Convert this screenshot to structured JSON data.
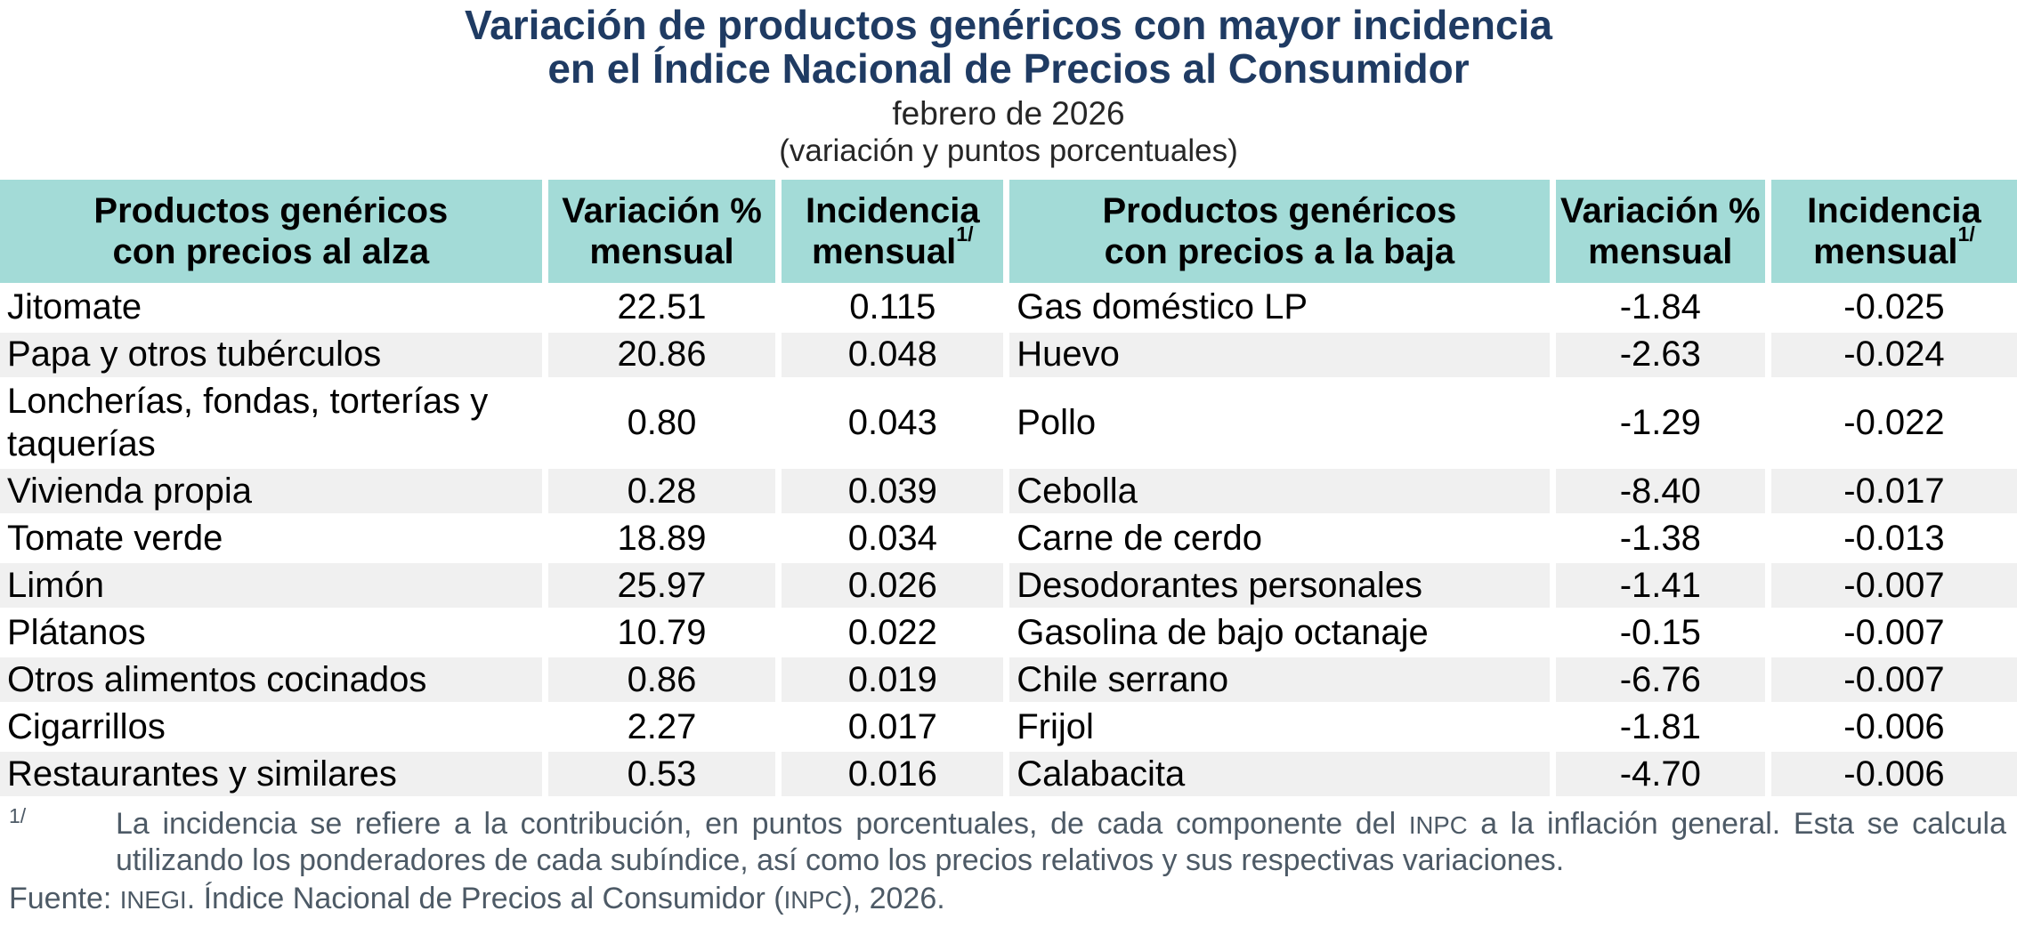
{
  "title": {
    "line1": "Variación de productos genéricos con mayor incidencia",
    "line2": "en el Índice Nacional de Precios al Consumidor",
    "date": "febrero de 2026",
    "units": "(variación y puntos porcentuales)"
  },
  "colors": {
    "title_navy": "#1F3B63",
    "header_teal": "#A3DBD7",
    "row_stripe": "#F0F0F0",
    "footnote_gray": "#4D5A66"
  },
  "table": {
    "headers": {
      "alza_product_l1": "Productos genéricos",
      "alza_product_l2": "con precios al alza",
      "variacion_l1": "Variación %",
      "variacion_l2": "mensual",
      "incidencia_l1": "Incidencia",
      "incidencia_l2": "mensual",
      "footnote_marker": "1/",
      "baja_product_l1": "Productos genéricos",
      "baja_product_l2": "con precios a la baja"
    },
    "rows": [
      {
        "alza": {
          "product": "Jitomate",
          "variacion": "22.51",
          "incidencia": "0.115"
        },
        "baja": {
          "product": "Gas doméstico LP",
          "variacion": "-1.84",
          "incidencia": "-0.025"
        }
      },
      {
        "alza": {
          "product": "Papa y otros tubérculos",
          "variacion": "20.86",
          "incidencia": "0.048"
        },
        "baja": {
          "product": "Huevo",
          "variacion": "-2.63",
          "incidencia": "-0.024"
        }
      },
      {
        "alza": {
          "product": "Loncherías, fondas, torterías y taquerías",
          "variacion": "0.80",
          "incidencia": "0.043"
        },
        "baja": {
          "product": "Pollo",
          "variacion": "-1.29",
          "incidencia": "-0.022"
        }
      },
      {
        "alza": {
          "product": "Vivienda propia",
          "variacion": "0.28",
          "incidencia": "0.039"
        },
        "baja": {
          "product": "Cebolla",
          "variacion": "-8.40",
          "incidencia": "-0.017"
        }
      },
      {
        "alza": {
          "product": "Tomate verde",
          "variacion": "18.89",
          "incidencia": "0.034"
        },
        "baja": {
          "product": "Carne de cerdo",
          "variacion": "-1.38",
          "incidencia": "-0.013"
        }
      },
      {
        "alza": {
          "product": "Limón",
          "variacion": "25.97",
          "incidencia": "0.026"
        },
        "baja": {
          "product": "Desodorantes personales",
          "variacion": "-1.41",
          "incidencia": "-0.007"
        }
      },
      {
        "alza": {
          "product": "Plátanos",
          "variacion": "10.79",
          "incidencia": "0.022"
        },
        "baja": {
          "product": "Gasolina de bajo octanaje",
          "variacion": "-0.15",
          "incidencia": "-0.007"
        }
      },
      {
        "alza": {
          "product": "Otros alimentos cocinados",
          "variacion": "0.86",
          "incidencia": "0.019"
        },
        "baja": {
          "product": "Chile serrano",
          "variacion": "-6.76",
          "incidencia": "-0.007"
        }
      },
      {
        "alza": {
          "product": "Cigarrillos",
          "variacion": "2.27",
          "incidencia": "0.017"
        },
        "baja": {
          "product": "Frijol",
          "variacion": "-1.81",
          "incidencia": "-0.006"
        }
      },
      {
        "alza": {
          "product": "Restaurantes y similares",
          "variacion": "0.53",
          "incidencia": "0.016"
        },
        "baja": {
          "product": "Calabacita",
          "variacion": "-4.70",
          "incidencia": "-0.006"
        }
      }
    ]
  },
  "footnotes": {
    "marker": "1/",
    "note_part1": "La incidencia se refiere a la contribución, en puntos porcentuales, de cada componente del ",
    "note_inpc": "INPC",
    "note_part2": " a la inflación general. Esta se calcula utilizando los ponderadores de cada subíndice, así como los precios relativos y sus respectivas variaciones.",
    "fuente_part1": "Fuente: ",
    "fuente_inegi": "INEGI",
    "fuente_part2": ". Índice Nacional de Precios al Consumidor (",
    "fuente_inpc": "INPC",
    "fuente_part3": "), 2026."
  },
  "chart_data": {
    "type": "table",
    "title": "Variación de productos genéricos con mayor incidencia en el Índice Nacional de Precios al Consumidor",
    "subtitle": "febrero de 2026 (variación y puntos porcentuales)",
    "groups": [
      {
        "name": "Productos genéricos con precios al alza",
        "columns": [
          "Producto",
          "Variación % mensual",
          "Incidencia mensual"
        ],
        "rows": [
          [
            "Jitomate",
            22.51,
            0.115
          ],
          [
            "Papa y otros tubérculos",
            20.86,
            0.048
          ],
          [
            "Loncherías, fondas, torterías y taquerías",
            0.8,
            0.043
          ],
          [
            "Vivienda propia",
            0.28,
            0.039
          ],
          [
            "Tomate verde",
            18.89,
            0.034
          ],
          [
            "Limón",
            25.97,
            0.026
          ],
          [
            "Plátanos",
            10.79,
            0.022
          ],
          [
            "Otros alimentos cocinados",
            0.86,
            0.019
          ],
          [
            "Cigarrillos",
            2.27,
            0.017
          ],
          [
            "Restaurantes y similares",
            0.53,
            0.016
          ]
        ]
      },
      {
        "name": "Productos genéricos con precios a la baja",
        "columns": [
          "Producto",
          "Variación % mensual",
          "Incidencia mensual"
        ],
        "rows": [
          [
            "Gas doméstico LP",
            -1.84,
            -0.025
          ],
          [
            "Huevo",
            -2.63,
            -0.024
          ],
          [
            "Pollo",
            -1.29,
            -0.022
          ],
          [
            "Cebolla",
            -8.4,
            -0.017
          ],
          [
            "Carne de cerdo",
            -1.38,
            -0.013
          ],
          [
            "Desodorantes personales",
            -1.41,
            -0.007
          ],
          [
            "Gasolina de bajo octanaje",
            -0.15,
            -0.007
          ],
          [
            "Chile serrano",
            -6.76,
            -0.007
          ],
          [
            "Frijol",
            -1.81,
            -0.006
          ],
          [
            "Calabacita",
            -4.7,
            -0.006
          ]
        ]
      }
    ],
    "source": "Fuente: INEGI. Índice Nacional de Precios al Consumidor (INPC), 2026."
  }
}
